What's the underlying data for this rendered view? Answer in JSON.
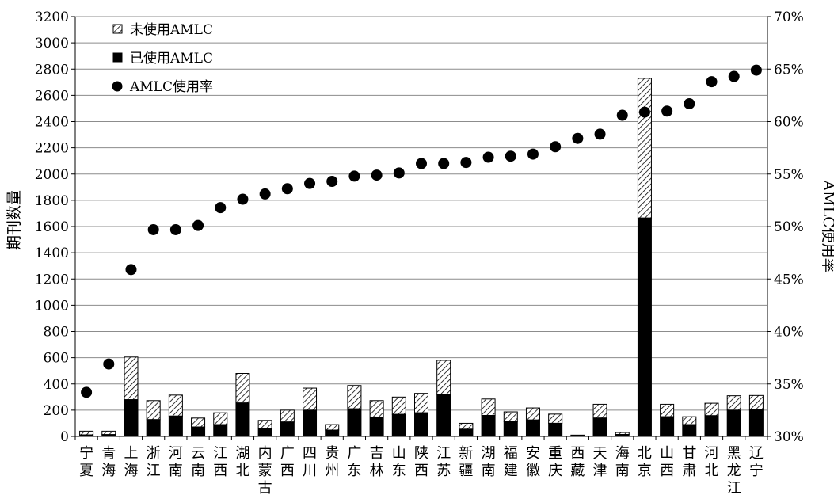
{
  "chart_data": {
    "type": "bar",
    "categories": [
      "宁夏",
      "青海",
      "上海",
      "浙江",
      "河南",
      "云南",
      "江西",
      "湖北",
      "内蒙古",
      "广西",
      "四川",
      "贵州",
      "广东",
      "吉林",
      "山东",
      "陕西",
      "江苏",
      "新疆",
      "湖南",
      "福建",
      "安徽",
      "重庆",
      "西藏",
      "天津",
      "海南",
      "北京",
      "山西",
      "甘肃",
      "河北",
      "黑龙江",
      "辽宁"
    ],
    "series": [
      {
        "name": "已使用AMLC",
        "type": "bar",
        "axis": "left",
        "values": [
          12,
          14,
          280,
          128,
          155,
          72,
          90,
          255,
          62,
          110,
          200,
          48,
          210,
          148,
          168,
          180,
          320,
          55,
          160,
          112,
          125,
          100,
          5,
          140,
          15,
          1665,
          150,
          90,
          158,
          200,
          202
        ]
      },
      {
        "name": "未使用AMLC",
        "type": "bar",
        "axis": "left",
        "values": [
          28,
          26,
          325,
          145,
          160,
          68,
          90,
          225,
          60,
          90,
          168,
          42,
          178,
          125,
          132,
          148,
          260,
          45,
          125,
          75,
          92,
          70,
          5,
          105,
          15,
          1065,
          95,
          60,
          95,
          110,
          110
        ]
      },
      {
        "name": "AMLC使用率",
        "type": "scatter",
        "axis": "right",
        "values": [
          34.2,
          36.9,
          45.9,
          49.7,
          49.7,
          50.1,
          51.8,
          52.6,
          53.1,
          53.6,
          54.1,
          54.3,
          54.8,
          54.9,
          55.1,
          56.0,
          56.0,
          56.1,
          56.6,
          56.7,
          56.9,
          57.6,
          58.4,
          58.8,
          60.6,
          60.9,
          61.0,
          61.7,
          63.8,
          64.3,
          64.9
        ]
      }
    ],
    "ylabel": "期刊数量",
    "ylabel_right": "AMLC使用率",
    "ylim": [
      0,
      3200
    ],
    "yticks": [
      "0",
      "200",
      "400",
      "600",
      "800",
      "1000",
      "1200",
      "1400",
      "1600",
      "1800",
      "2000",
      "2200",
      "2400",
      "2600",
      "2800",
      "3000",
      "3200"
    ],
    "ylim_right": [
      30,
      70
    ],
    "yticks_right": [
      "30%",
      "35%",
      "40%",
      "45%",
      "50%",
      "55%",
      "60%",
      "65%",
      "70%"
    ],
    "grid": true,
    "legend_position": "top-left"
  }
}
